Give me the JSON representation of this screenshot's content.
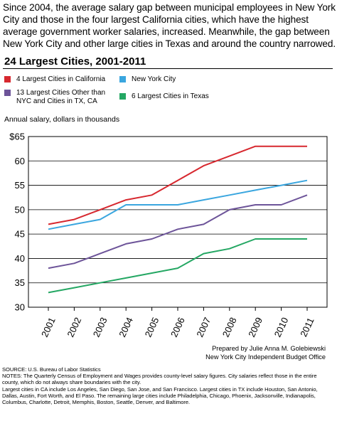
{
  "intro_text": "Since 2004, the average salary gap between municipal employees in New York City and those in the four largest California cities, which have the highest average government worker salaries, increased. Meanwhile, the gap between New York City and other large cities in Texas and around the country narrowed.",
  "credit": {
    "line1": "Prepared by Julie Anna M. Golebiewski",
    "line2": "New York City Independent Budget Office"
  },
  "notes": {
    "source": "SOURCE:  U.S. Bureau of Labor Statistics",
    "line1": "NOTES: The Quarterly Census of Employment and Wages provides county-level salary figures.  City salaries reflect those in the entire county, which do not always share boundaries with the city.",
    "line2": "Largest cities in CA include Los Angeles, San Diego, San Jose, and San Francisco.  Largest cities in TX include Houston, San Antonio, Dallas, Austin, Fort Worth, and El Paso. The remaining large cities include Philadelphia, Chicago, Phoenix, Jacksonville,  Indianapolis, Columbus, Charlotte, Detroit, Memphis, Boston, Seattle, Denver, and Baltimore."
  },
  "chart_data": {
    "type": "line",
    "title": "24 Largest Cities, 2001-2011",
    "ylabel": "Annual salary, dollars in thousands",
    "xlabel": "",
    "x": [
      "2001",
      "2002",
      "2003",
      "2004",
      "2005",
      "2006",
      "2007",
      "2008",
      "2009",
      "2010",
      "2011"
    ],
    "ylim": [
      30,
      65
    ],
    "yticks": [
      "30",
      "35",
      "40",
      "45",
      "50",
      "55",
      "60",
      "$65"
    ],
    "yticks_values": [
      30,
      35,
      40,
      45,
      50,
      55,
      60,
      65
    ],
    "grid": true,
    "legend_position": "top",
    "series": [
      {
        "name": "4 Largest Cities in California",
        "color": "#d7282f",
        "values": [
          47,
          48,
          50,
          52,
          53,
          56,
          59,
          61,
          63,
          63,
          63
        ]
      },
      {
        "name": "New York City",
        "color": "#3aa6df",
        "values": [
          46,
          47,
          48,
          51,
          51,
          51,
          52,
          53,
          54,
          55,
          56
        ]
      },
      {
        "name": "13 Largest Cities Other than NYC and Cities in TX, CA",
        "color": "#6d5499",
        "values": [
          38,
          39,
          41,
          43,
          44,
          46,
          47,
          50,
          51,
          51,
          53
        ]
      },
      {
        "name": "6 Largest Cities in Texas",
        "color": "#24a763",
        "values": [
          33,
          34,
          35,
          36,
          37,
          38,
          41,
          42,
          44,
          44,
          44
        ]
      }
    ]
  }
}
